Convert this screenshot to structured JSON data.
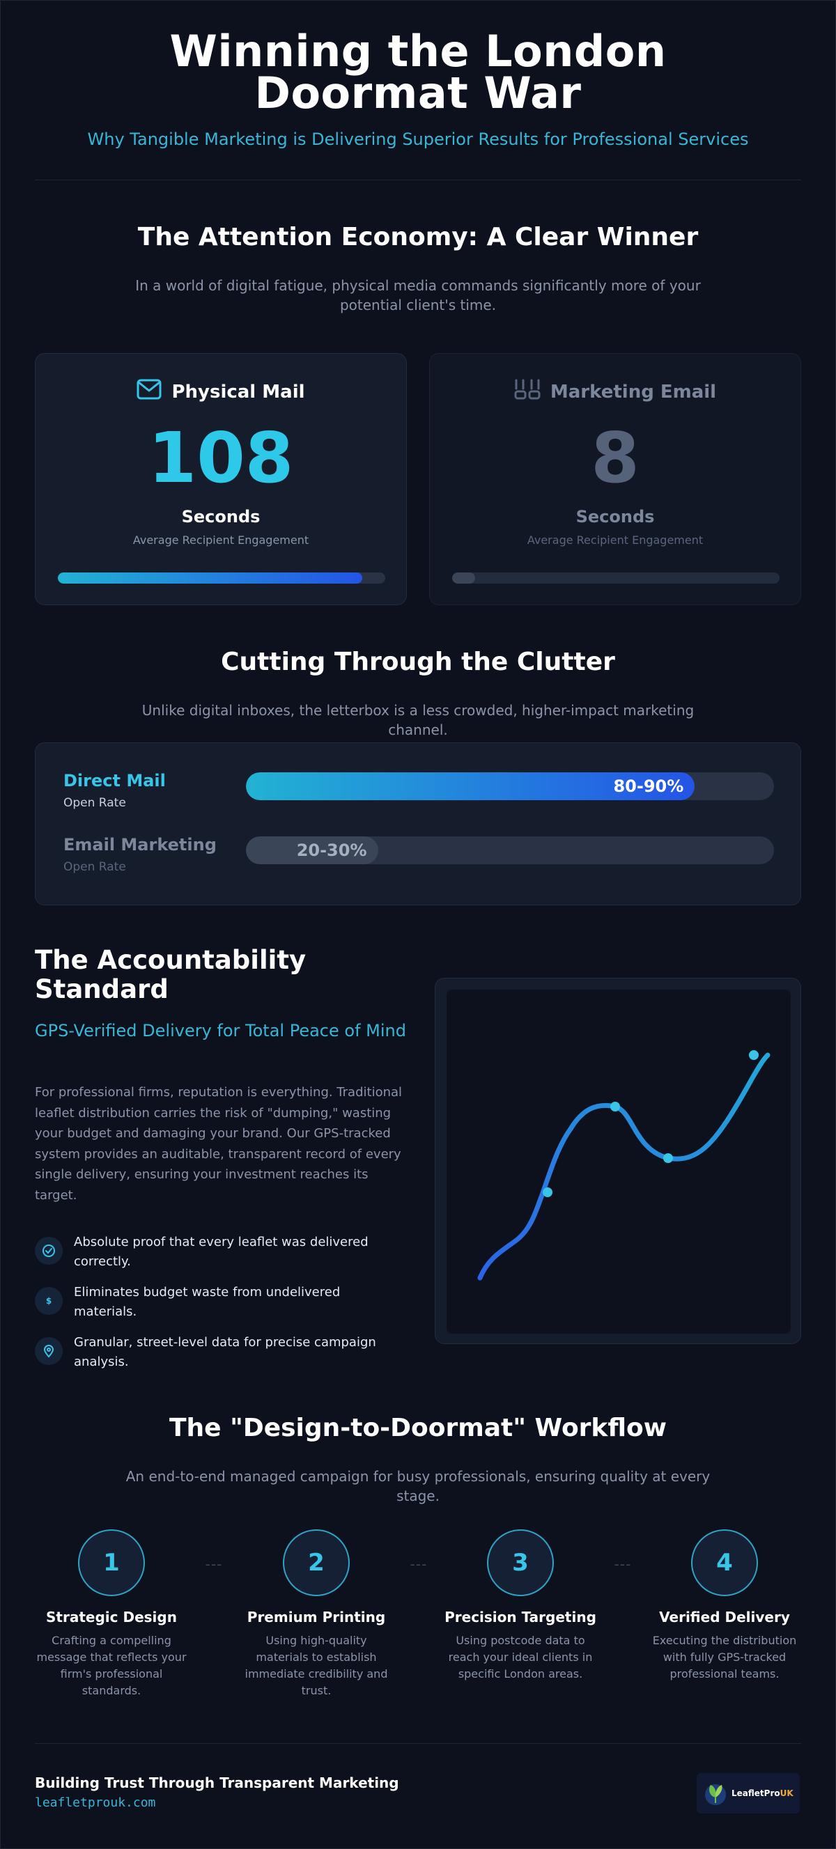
{
  "header": {
    "title": "Winning the London Doormat War",
    "subtitle": "Why Tangible Marketing is Delivering Superior Results for Professional Services"
  },
  "attention": {
    "title": "The Attention Economy: A Clear Winner",
    "subtitle": "In a world of digital fatigue, physical media commands significantly more of your potential client's time.",
    "cards": [
      {
        "label": "Physical Mail",
        "value": "108",
        "unit": "Seconds",
        "caption": "Average Recipient Engagement",
        "icon": "mail-icon",
        "fill": 0.93
      },
      {
        "label": "Marketing Email",
        "value": "8",
        "unit": "Seconds",
        "caption": "Average Recipient Engagement",
        "icon": "inbox-icon",
        "fill": 0.07
      }
    ]
  },
  "clutter": {
    "title": "Cutting Through the Clutter",
    "subtitle": "Unlike digital inboxes, the letterbox is a less crowded, higher-impact marketing channel.",
    "rates": [
      {
        "name": "Direct Mail",
        "sub": "Open Rate",
        "value": "80-90%",
        "fill": 0.85
      },
      {
        "name": "Email Marketing",
        "sub": "Open Rate",
        "value": "20-30%",
        "fill": 0.25
      }
    ]
  },
  "accountability": {
    "title": "The Accountability Standard",
    "subtitle": "GPS-Verified Delivery for Total Peace of Mind",
    "body": "For professional firms, reputation is everything. Traditional leaflet distribution carries the risk of \"dumping,\" wasting your budget and damaging your brand. Our GPS-tracked system provides an auditable, transparent record of every single delivery, ensuring your investment reaches its target.",
    "bullets": [
      {
        "icon": "check-circle-icon",
        "text": "Absolute proof that every leaflet was delivered correctly."
      },
      {
        "icon": "dollar-icon",
        "text": "Eliminates budget waste from undelivered materials."
      },
      {
        "icon": "map-pin-icon",
        "text": "Granular, street-level data for precise campaign analysis."
      }
    ]
  },
  "workflow": {
    "title": "The \"Design-to-Doormat\" Workflow",
    "subtitle": "An end-to-end managed campaign for busy professionals, ensuring quality at every stage.",
    "steps": [
      {
        "number": "1",
        "name": "Strategic Design",
        "desc": "Crafting a compelling message that reflects your firm's professional standards."
      },
      {
        "number": "2",
        "name": "Premium Printing",
        "desc": "Using high-quality materials to establish immediate credibility and trust."
      },
      {
        "number": "3",
        "name": "Precision Targeting",
        "desc": "Using postcode data to reach your ideal clients in specific London areas."
      },
      {
        "number": "4",
        "name": "Verified Delivery",
        "desc": "Executing the distribution with fully GPS-tracked professional teams."
      }
    ],
    "connector": "---"
  },
  "footer": {
    "title": "Building Trust Through Transparent Marketing",
    "url": "leafletprouk.com",
    "logo_text": "LeafletPro",
    "logo_suffix": "UK"
  },
  "colors": {
    "accent": "#38c5e8",
    "accent_blue": "#2454e6",
    "muted": "#5a667d",
    "background": "#0c111d"
  }
}
